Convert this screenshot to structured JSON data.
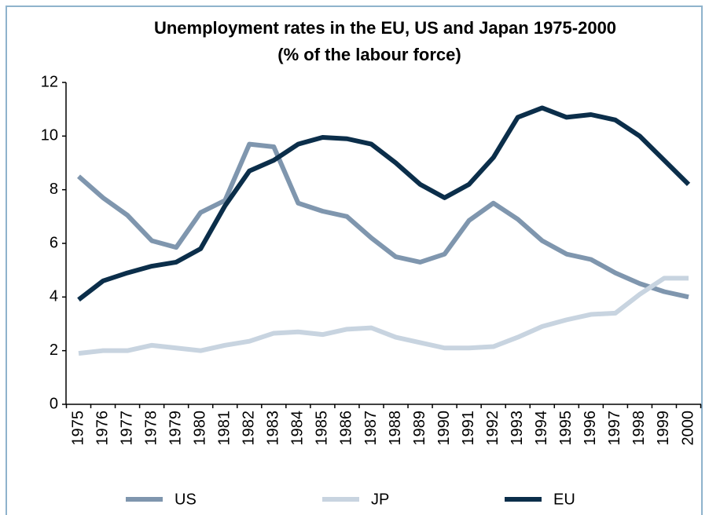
{
  "chart_data": {
    "type": "line",
    "title": "Unemployment rates in the EU, US and Japan 1975-2000",
    "subtitle": "(% of the labour force)",
    "categories": [
      "1975",
      "1976",
      "1977",
      "1978",
      "1979",
      "1980",
      "1981",
      "1982",
      "1983",
      "1984",
      "1985",
      "1986",
      "1987",
      "1988",
      "1989",
      "1990",
      "1991",
      "1992",
      "1993",
      "1994",
      "1995",
      "1996",
      "1997",
      "1998",
      "1999",
      "2000"
    ],
    "series": [
      {
        "name": "US",
        "color": "#7f96ae",
        "values": [
          8.5,
          7.7,
          7.05,
          6.1,
          5.85,
          7.15,
          7.6,
          9.7,
          9.6,
          7.5,
          7.2,
          7.0,
          6.2,
          5.5,
          5.3,
          5.6,
          6.85,
          7.5,
          6.9,
          6.1,
          5.6,
          5.4,
          4.9,
          4.5,
          4.2,
          4.0
        ]
      },
      {
        "name": "JP",
        "color": "#c8d4e0",
        "values": [
          1.9,
          2.0,
          2.0,
          2.2,
          2.1,
          2.0,
          2.2,
          2.35,
          2.65,
          2.7,
          2.6,
          2.8,
          2.85,
          2.5,
          2.3,
          2.1,
          2.1,
          2.15,
          2.5,
          2.9,
          3.15,
          3.35,
          3.4,
          4.1,
          4.7,
          4.7
        ]
      },
      {
        "name": "EU",
        "color": "#0b2e4a",
        "values": [
          3.9,
          4.6,
          4.9,
          5.15,
          5.3,
          5.8,
          7.4,
          8.7,
          9.1,
          9.7,
          9.95,
          9.9,
          9.7,
          9.0,
          8.2,
          7.7,
          8.2,
          9.2,
          10.7,
          11.05,
          10.7,
          10.8,
          10.6,
          10.0,
          9.1,
          8.2
        ]
      }
    ],
    "ylim": [
      0,
      12
    ],
    "yticks": [
      0,
      2,
      4,
      6,
      8,
      10,
      12
    ],
    "legend": "bottom"
  }
}
